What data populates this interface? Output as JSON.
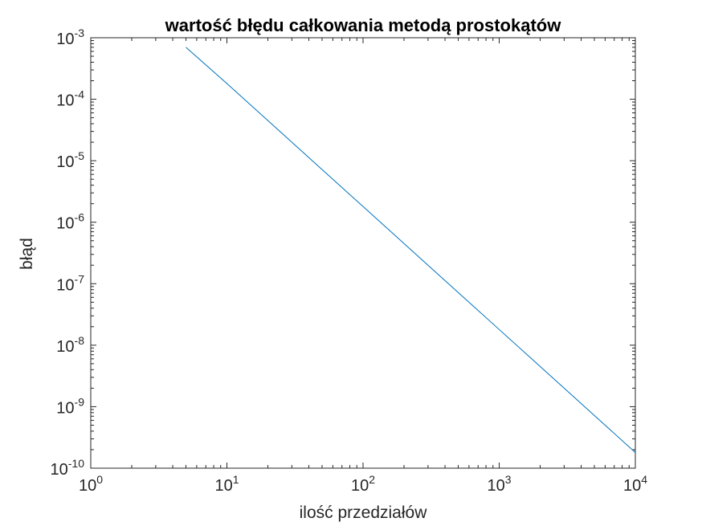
{
  "chart_data": {
    "type": "line",
    "title": "wartość błędu całkowania metodą prostokątów",
    "xlabel": "ilość przedziałów",
    "ylabel": "błąd",
    "xscale": "log",
    "yscale": "log",
    "xlim": [
      1,
      10000
    ],
    "ylim": [
      1e-10,
      0.001
    ],
    "x_ticks": [
      {
        "base": "10",
        "exp": "0",
        "value": 1
      },
      {
        "base": "10",
        "exp": "1",
        "value": 10
      },
      {
        "base": "10",
        "exp": "2",
        "value": 100
      },
      {
        "base": "10",
        "exp": "3",
        "value": 1000
      },
      {
        "base": "10",
        "exp": "4",
        "value": 10000
      }
    ],
    "y_ticks": [
      {
        "base": "10",
        "exp": "-3",
        "value": 0.001
      },
      {
        "base": "10",
        "exp": "-4",
        "value": 0.0001
      },
      {
        "base": "10",
        "exp": "-5",
        "value": 1e-05
      },
      {
        "base": "10",
        "exp": "-6",
        "value": 1e-06
      },
      {
        "base": "10",
        "exp": "-7",
        "value": 1e-07
      },
      {
        "base": "10",
        "exp": "-8",
        "value": 1e-08
      },
      {
        "base": "10",
        "exp": "-9",
        "value": 1e-09
      },
      {
        "base": "10",
        "exp": "-10",
        "value": 1e-10
      }
    ],
    "grid": false,
    "box": true,
    "series": [
      {
        "color": "#0072bd",
        "x": [
          5,
          10,
          20,
          50,
          100,
          200,
          500,
          1000,
          2000,
          5000,
          10000
        ],
        "y": [
          0.0007,
          0.00018,
          4.5e-05,
          7.2e-06,
          1.8e-06,
          4.5e-07,
          7.2e-08,
          1.8e-08,
          4.5e-09,
          7.2e-10,
          1.8e-10
        ]
      }
    ]
  }
}
